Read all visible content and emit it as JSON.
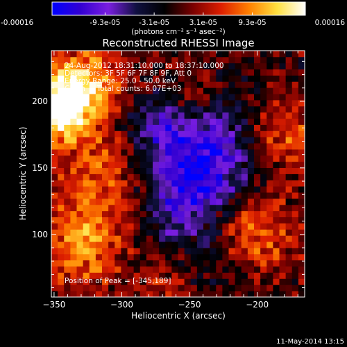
{
  "chart_data": {
    "type": "heatmap",
    "title": "Reconstructed RHESSI Image",
    "xlabel": "Heliocentric X (arcsec)",
    "ylabel": "Heliocentric Y (arcsec)",
    "xlim": [
      -352,
      -165
    ],
    "ylim": [
      53,
      238
    ],
    "xticks": [
      -350,
      -300,
      -250,
      -200
    ],
    "yticks": [
      100,
      150,
      200
    ],
    "colorbar": {
      "tick_labels": [
        "-0.00016",
        "-9.3e-05",
        "-3.1e-05",
        "3.1e-05",
        "9.3e-05",
        "0.00016"
      ],
      "tick_values": [
        -0.00016,
        -9.3e-05,
        -3.1e-05,
        3.1e-05,
        9.3e-05,
        0.00016
      ],
      "range": [
        -0.00016,
        0.00016
      ],
      "unit_label": "(photons cm⁻² s⁻¹ asec⁻²)",
      "stops": [
        "#0000ff",
        "#3200d2",
        "#7a1ee0",
        "#101040",
        "#000000",
        "#7a0000",
        "#dd1e00",
        "#ff8000",
        "#ffe040",
        "#ffffff"
      ]
    },
    "annotations": [
      "24-Aug-2012 18:31:10.000 to 18:37:10.000",
      "Detectors: 3F 5F 6F 7F 8F 9F, Att 0",
      "Energy Range: 25.0 - 50.0 keV",
      "Clean     Total counts: 6.07E+03"
    ],
    "peak_label": "Position of Peak = [-345,189]",
    "peak_position": [
      -345,
      189
    ],
    "features": [
      {
        "x": -348,
        "y": 195,
        "value": 0.00016,
        "sigma": 18
      },
      {
        "x": -325,
        "y": 215,
        "value": 0.0001,
        "sigma": 20
      },
      {
        "x": -312,
        "y": 140,
        "value": 7e-05,
        "sigma": 28
      },
      {
        "x": -330,
        "y": 90,
        "value": 8e-05,
        "sigma": 22
      },
      {
        "x": -205,
        "y": 100,
        "value": 9e-05,
        "sigma": 22
      },
      {
        "x": -180,
        "y": 170,
        "value": 7e-05,
        "sigma": 20
      },
      {
        "x": -250,
        "y": 205,
        "value": 5e-05,
        "sigma": 14
      },
      {
        "x": -265,
        "y": 62,
        "value": 4e-05,
        "sigma": 18
      },
      {
        "x": -240,
        "y": 160,
        "value": -0.00013,
        "sigma": 28
      },
      {
        "x": -258,
        "y": 120,
        "value": -8e-05,
        "sigma": 24
      },
      {
        "x": -275,
        "y": 185,
        "value": -6e-05,
        "sigma": 16
      },
      {
        "x": -225,
        "y": 75,
        "value": -4e-05,
        "sigma": 20
      }
    ]
  },
  "footer": {
    "date": "11-May-2014 13:15"
  }
}
